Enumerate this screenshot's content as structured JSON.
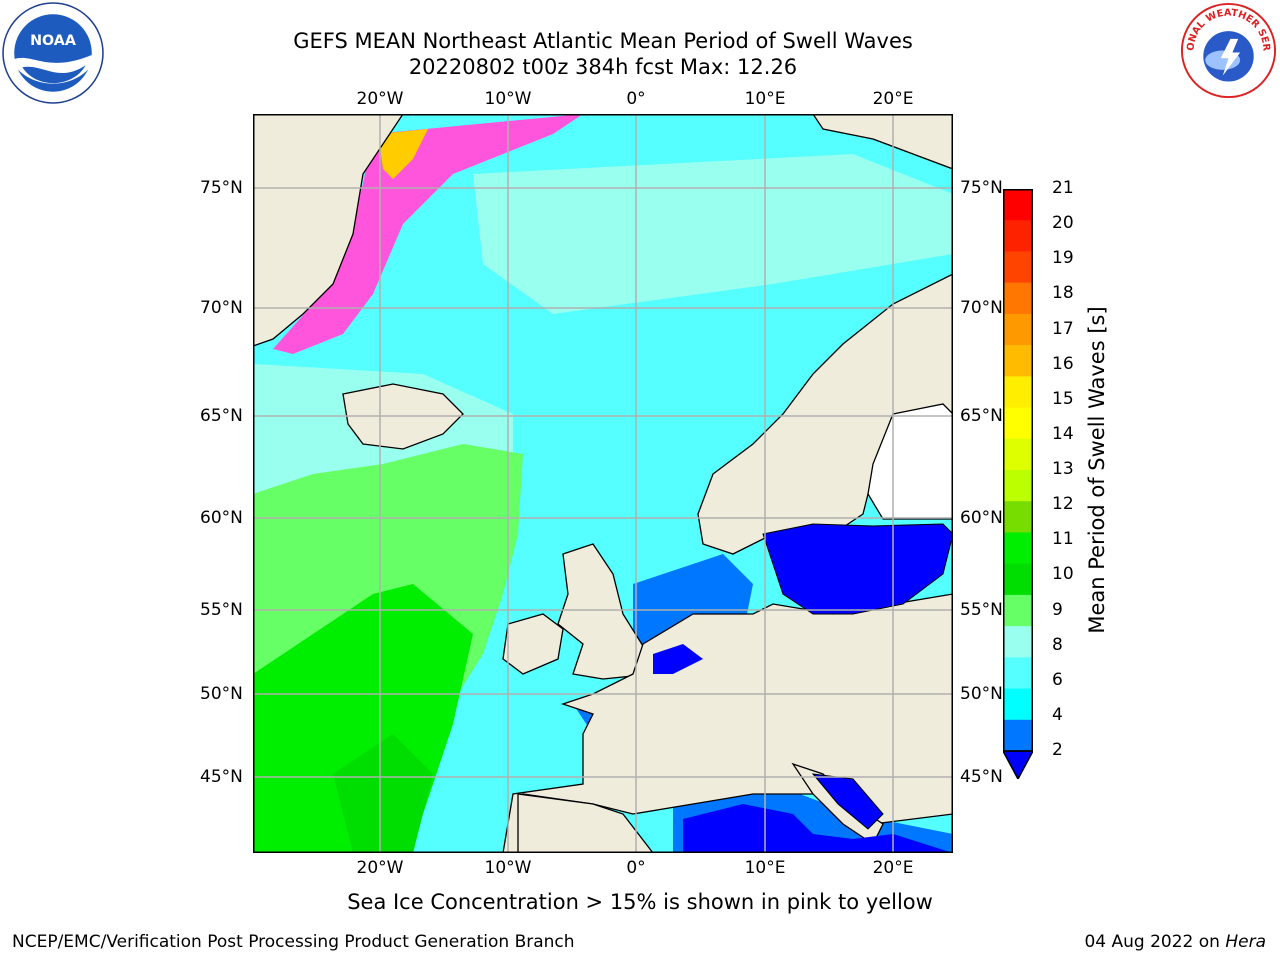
{
  "header": {
    "title_line1": "GEFS MEAN Northeast Atlantic Mean Period of Swell Waves",
    "title_line2": "20220802 t00z 384h fcst   Max: 12.26"
  },
  "logos": {
    "left": "noaa-logo",
    "left_text": "NOAA",
    "right": "national-weather-service-logo",
    "right_text": "NATIONAL WEATHER SERVICE"
  },
  "map": {
    "lon_ticks": [
      "20°W",
      "10°W",
      "0°",
      "10°E",
      "20°E"
    ],
    "lat_ticks": [
      "75°N",
      "70°N",
      "65°N",
      "60°N",
      "55°N",
      "50°N",
      "45°N"
    ]
  },
  "colorbar": {
    "title": "Mean Period of Swell Waves [s]",
    "labels": [
      "21",
      "20",
      "19",
      "18",
      "17",
      "16",
      "15",
      "14",
      "13",
      "12",
      "11",
      "10",
      "9",
      "8",
      "6",
      "4",
      "2"
    ],
    "colors": [
      "#ff0000",
      "#ff2200",
      "#ff4400",
      "#ff7700",
      "#ff9900",
      "#ffbb00",
      "#ffee00",
      "#ffff00",
      "#ddff00",
      "#bbff00",
      "#77dd00",
      "#00ee00",
      "#00dd00",
      "#66ff66",
      "#99ffee",
      "#55ffff",
      "#00ffff",
      "#0077ff"
    ],
    "below_color": "#0000ff"
  },
  "colors": {
    "land": "#efecdc",
    "ocean_cyan": "#55ffff",
    "ocean_light": "#99ffee",
    "ocean_green": "#66ff66",
    "ocean_green_dark": "#00dd00",
    "ocean_blue": "#0077ff",
    "ocean_deep_blue": "#0000ff",
    "ice_pink": "#ff55dd",
    "ice_yellow": "#ffcc00"
  },
  "footer": {
    "ice_note": "Sea Ice Concentration > 15% is shown in pink to yellow",
    "credit_left": "NCEP/EMC/Verification Post Processing Product Generation Branch",
    "credit_date": "04 Aug 2022 on ",
    "credit_system": "Hera"
  }
}
